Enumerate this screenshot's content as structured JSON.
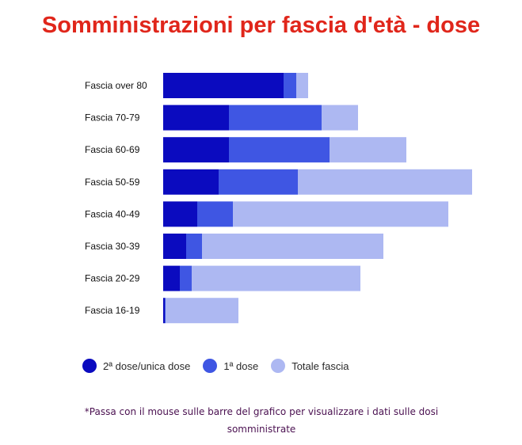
{
  "colors": {
    "title": "#e0261b",
    "second_dose": "#0b0bbf",
    "first_dose": "#3f56e3",
    "total": "#adb8f2",
    "footnote": "#4a1050"
  },
  "legend": {
    "items": [
      {
        "label": "2ª dose/unica dose",
        "color": "#0b0bbf"
      },
      {
        "label": "1ª dose",
        "color": "#3f56e3"
      },
      {
        "label": "Totale fascia",
        "color": "#adb8f2"
      }
    ]
  },
  "footnote": "*Passa con il mouse sulle barre del grafico per visualizzare i dati sulle dosi somministrate",
  "chart_data": {
    "type": "bar",
    "orientation": "horizontal",
    "stacked": true,
    "title": "Somministrazioni per fascia d'età - dose",
    "categories": [
      "Fascia over 80",
      "Fascia 70-79",
      "Fascia 60-69",
      "Fascia 50-59",
      "Fascia 40-49",
      "Fascia 30-39",
      "Fascia 20-29",
      "Fascia 16-19"
    ],
    "series": [
      {
        "name": "2ª dose/unica dose",
        "values": [
          152,
          83,
          83,
          70,
          43,
          29,
          21,
          2
        ]
      },
      {
        "name": "1ª dose",
        "values": [
          16,
          117,
          127,
          100,
          45,
          20,
          15,
          1
        ]
      },
      {
        "name": "Totale fascia",
        "values": [
          15,
          46,
          97,
          220,
          272,
          229,
          213,
          92
        ]
      }
    ],
    "xlim": [
      0,
      390
    ],
    "grid": false,
    "legend_position": "bottom-left"
  }
}
